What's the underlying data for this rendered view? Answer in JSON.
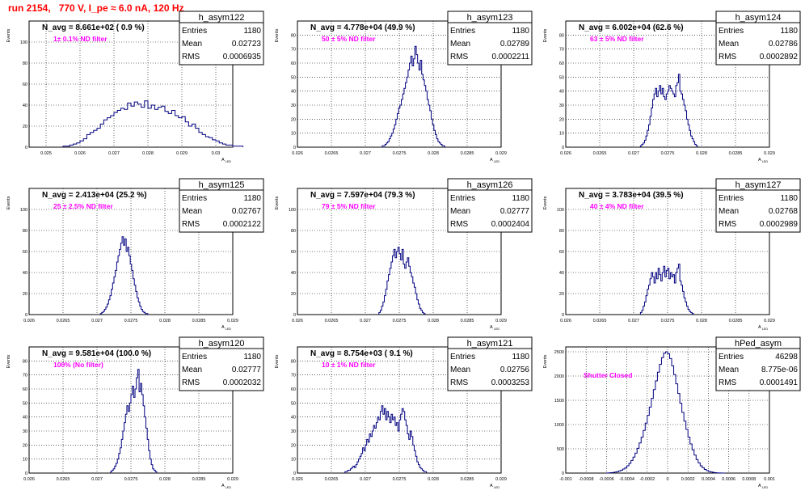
{
  "page": {
    "run_title": "run 2154,   770 V, I_pe ≈ 6.0 nA, 120 Hz"
  },
  "colors": {
    "hist_line": "#000080",
    "navg_text": "#000000",
    "filter_text": "#ff00ff",
    "title_text": "#ff0000",
    "grid": "#000000"
  },
  "chart_data": [
    {
      "type": "bar",
      "name": "h_asym122",
      "ylabel": "Events",
      "xlabel": "A_LED",
      "xlim": [
        0.0245,
        0.0305
      ],
      "ylim": [
        0,
        120
      ],
      "xticks": [
        0.025,
        0.026,
        0.027,
        0.028,
        0.029,
        0.03
      ],
      "xticklabels": [
        "0.025",
        "0.026",
        "0.027",
        "0.028",
        "0.029",
        "0.03"
      ],
      "yticks": [
        0,
        20,
        40,
        60,
        80,
        100
      ],
      "navg": "N_avg = 8.661e+02 ( 0.9 %)",
      "filter": "1± 0.1% ND filter",
      "stats": {
        "title": "h_asym122",
        "rows": [
          [
            "Entries",
            "1180"
          ],
          [
            "Mean",
            "0.02723"
          ],
          [
            "RMS",
            "0.0006935"
          ]
        ]
      },
      "bins": {
        "start": 0.0255,
        "width": 0.0001,
        "values": [
          1,
          1,
          2,
          3,
          4,
          6,
          8,
          12,
          14,
          16,
          18,
          22,
          26,
          28,
          30,
          33,
          35,
          37,
          36,
          42,
          39,
          43,
          41,
          38,
          44,
          37,
          40,
          36,
          38,
          39,
          34,
          32,
          35,
          30,
          28,
          29,
          24,
          20,
          22,
          18,
          14,
          12,
          10,
          9,
          7,
          6,
          4,
          3,
          2,
          2,
          1,
          1,
          1
        ]
      }
    },
    {
      "type": "bar",
      "name": "h_asym123",
      "ylabel": "Events",
      "xlabel": "A_LED",
      "xlim": [
        0.026,
        0.029
      ],
      "ylim": [
        0,
        90
      ],
      "xticks": [
        0.026,
        0.0265,
        0.027,
        0.0275,
        0.028,
        0.0285,
        0.029
      ],
      "xticklabels": [
        "0.026",
        "0.0265",
        "0.027",
        "0.0275",
        "0.028",
        "0.0285",
        "0.029"
      ],
      "yticks": [
        0,
        10,
        20,
        30,
        40,
        50,
        60,
        70,
        80
      ],
      "navg": "N_avg = 4.778e+04 (49.9 %)",
      "filter": "50 ± 5% ND filter",
      "stats": {
        "title": "h_asym123",
        "rows": [
          [
            "Entries",
            "1180"
          ],
          [
            "Mean",
            "0.02789"
          ],
          [
            "RMS",
            "0.0002211"
          ]
        ]
      },
      "bins": {
        "start": 0.02725,
        "width": 2e-05,
        "values": [
          1,
          1,
          2,
          3,
          4,
          6,
          8,
          10,
          13,
          16,
          20,
          24,
          28,
          30,
          34,
          38,
          42,
          46,
          50,
          55,
          60,
          65,
          58,
          63,
          72,
          66,
          60,
          55,
          62,
          52,
          48,
          44,
          40,
          34,
          30,
          26,
          20,
          16,
          12,
          9,
          6,
          4,
          3,
          2,
          1,
          1
        ]
      }
    },
    {
      "type": "bar",
      "name": "h_asym124",
      "ylabel": "Events",
      "xlabel": "A_LED",
      "xlim": [
        0.026,
        0.029
      ],
      "ylim": [
        0,
        90
      ],
      "xticks": [
        0.026,
        0.0265,
        0.027,
        0.0275,
        0.028,
        0.0285,
        0.029
      ],
      "xticklabels": [
        "0.026",
        "0.0265",
        "0.027",
        "0.0275",
        "0.028",
        "0.0285",
        "0.029"
      ],
      "yticks": [
        0,
        10,
        20,
        30,
        40,
        50,
        60,
        70,
        80
      ],
      "navg": "N_avg = 6.002e+04 (62.6 %)",
      "filter": "63 ± 5% ND filter",
      "stats": {
        "title": "h_asym124",
        "rows": [
          [
            "Entries",
            "1180"
          ],
          [
            "Mean",
            "0.02786"
          ],
          [
            "RMS",
            "0.0002892"
          ]
        ]
      },
      "bins": {
        "start": 0.0271,
        "width": 2e-05,
        "values": [
          1,
          2,
          3,
          5,
          8,
          12,
          16,
          22,
          28,
          34,
          38,
          42,
          36,
          40,
          44,
          38,
          42,
          36,
          34,
          38,
          40,
          44,
          42,
          40,
          38,
          36,
          44,
          46,
          52,
          40,
          38,
          34,
          30,
          26,
          20,
          16,
          12,
          8,
          6,
          4,
          2,
          1
        ]
      }
    },
    {
      "type": "bar",
      "name": "h_asym125",
      "ylabel": "Events",
      "xlabel": "A_LED",
      "xlim": [
        0.026,
        0.029
      ],
      "ylim": [
        0,
        120
      ],
      "xticks": [
        0.026,
        0.0265,
        0.027,
        0.0275,
        0.028,
        0.0285,
        0.029
      ],
      "xticklabels": [
        "0.026",
        "0.0265",
        "0.027",
        "0.0275",
        "0.028",
        "0.0285",
        "0.029"
      ],
      "yticks": [
        0,
        20,
        40,
        60,
        80,
        100
      ],
      "navg": "N_avg = 2.413e+04 (25.2 %)",
      "filter": "25 ± 2.5% ND filter",
      "stats": {
        "title": "h_asym125",
        "rows": [
          [
            "Entries",
            "1180"
          ],
          [
            "Mean",
            "0.02767"
          ],
          [
            "RMS",
            "0.0002122"
          ]
        ]
      },
      "bins": {
        "start": 0.02705,
        "width": 2e-05,
        "values": [
          1,
          2,
          3,
          5,
          7,
          10,
          14,
          18,
          24,
          30,
          36,
          42,
          50,
          56,
          62,
          68,
          74,
          66,
          72,
          60,
          64,
          56,
          48,
          42,
          34,
          28,
          22,
          16,
          12,
          8,
          5,
          3,
          2,
          1,
          1
        ]
      }
    },
    {
      "type": "bar",
      "name": "h_asym126",
      "ylabel": "Events",
      "xlabel": "A_LED",
      "xlim": [
        0.026,
        0.029
      ],
      "ylim": [
        0,
        120
      ],
      "xticks": [
        0.026,
        0.0265,
        0.027,
        0.0275,
        0.028,
        0.0285,
        0.029
      ],
      "xticklabels": [
        "0.026",
        "0.0265",
        "0.027",
        "0.0275",
        "0.028",
        "0.0285",
        "0.029"
      ],
      "yticks": [
        0,
        20,
        40,
        60,
        80,
        100
      ],
      "navg": "N_avg = 7.597e+04 (79.3 %)",
      "filter": "79 ± 5% ND filter",
      "stats": {
        "title": "h_asym126",
        "rows": [
          [
            "Entries",
            "1180"
          ],
          [
            "Mean",
            "0.02777"
          ],
          [
            "RMS",
            "0.0002404"
          ]
        ]
      },
      "bins": {
        "start": 0.0272,
        "width": 2e-05,
        "values": [
          2,
          4,
          8,
          12,
          18,
          24,
          32,
          38,
          44,
          50,
          56,
          62,
          54,
          60,
          64,
          58,
          52,
          62,
          48,
          44,
          50,
          54,
          46,
          40,
          36,
          30,
          26,
          20,
          14,
          10,
          6,
          4,
          2,
          1
        ]
      }
    },
    {
      "type": "bar",
      "name": "h_asym127",
      "ylabel": "Events",
      "xlabel": "A_LED",
      "xlim": [
        0.026,
        0.029
      ],
      "ylim": [
        0,
        120
      ],
      "xticks": [
        0.026,
        0.0265,
        0.027,
        0.0275,
        0.028,
        0.0285,
        0.029
      ],
      "xticklabels": [
        "0.026",
        "0.0265",
        "0.027",
        "0.0275",
        "0.028",
        "0.0285",
        "0.029"
      ],
      "yticks": [
        0,
        20,
        40,
        60,
        80,
        100
      ],
      "navg": "N_avg = 3.783e+04 (39.5 %)",
      "filter": "40 ± 4% ND filter",
      "stats": {
        "title": "h_asym127",
        "rows": [
          [
            "Entries",
            "1180"
          ],
          [
            "Mean",
            "0.02768"
          ],
          [
            "RMS",
            "0.0002989"
          ]
        ]
      },
      "bins": {
        "start": 0.0271,
        "width": 2e-05,
        "values": [
          2,
          4,
          8,
          12,
          18,
          24,
          28,
          34,
          40,
          36,
          30,
          40,
          34,
          44,
          38,
          32,
          40,
          46,
          36,
          42,
          44,
          34,
          40,
          36,
          38,
          30,
          40,
          44,
          48,
          32,
          28,
          22,
          16,
          12,
          8,
          5,
          3,
          2,
          1
        ]
      }
    },
    {
      "type": "bar",
      "name": "h_asym120",
      "ylabel": "Events",
      "xlabel": "A_LED",
      "xlim": [
        0.026,
        0.029
      ],
      "ylim": [
        0,
        90
      ],
      "xticks": [
        0.026,
        0.0265,
        0.027,
        0.0275,
        0.028,
        0.0285,
        0.029
      ],
      "xticklabels": [
        "0.026",
        "0.0265",
        "0.027",
        "0.0275",
        "0.028",
        "0.0285",
        "0.029"
      ],
      "yticks": [
        0,
        10,
        20,
        30,
        40,
        50,
        60,
        70,
        80
      ],
      "navg": "N_avg = 9.581e+04 (100.0 %)",
      "filter": "100% (No filter)",
      "stats": {
        "title": "h_asym120",
        "rows": [
          [
            "Entries",
            "1180"
          ],
          [
            "Mean",
            "0.02777"
          ],
          [
            "RMS",
            "0.0002032"
          ]
        ]
      },
      "bins": {
        "start": 0.0272,
        "width": 2e-05,
        "values": [
          1,
          2,
          3,
          5,
          7,
          10,
          14,
          18,
          24,
          30,
          36,
          42,
          48,
          44,
          50,
          56,
          62,
          54,
          60,
          68,
          74,
          58,
          64,
          56,
          48,
          40,
          32,
          24,
          16,
          10,
          6,
          3,
          2,
          1
        ]
      }
    },
    {
      "type": "bar",
      "name": "h_asym121",
      "ylabel": "Events",
      "xlabel": "A_LED",
      "xlim": [
        0.026,
        0.029
      ],
      "ylim": [
        0,
        90
      ],
      "xticks": [
        0.026,
        0.0265,
        0.027,
        0.0275,
        0.028,
        0.0285,
        0.029
      ],
      "xticklabels": [
        "0.026",
        "0.0265",
        "0.027",
        "0.0275",
        "0.028",
        "0.0285",
        "0.029"
      ],
      "yticks": [
        0,
        10,
        20,
        30,
        40,
        50,
        60,
        70,
        80
      ],
      "navg": "N_avg = 8.754e+03 ( 9.1 %)",
      "filter": "10 ± 1% ND filter",
      "stats": {
        "title": "h_asym121",
        "rows": [
          [
            "Entries",
            "1180"
          ],
          [
            "Mean",
            "0.02756"
          ],
          [
            "RMS",
            "0.0003253"
          ]
        ]
      },
      "bins": {
        "start": 0.0267,
        "width": 2e-05,
        "values": [
          1,
          1,
          2,
          2,
          3,
          4,
          5,
          4,
          6,
          8,
          10,
          12,
          14,
          18,
          16,
          20,
          24,
          22,
          28,
          26,
          30,
          34,
          32,
          36,
          40,
          38,
          44,
          48,
          42,
          46,
          38,
          44,
          40,
          36,
          42,
          38,
          40,
          34,
          36,
          30,
          38,
          42,
          46,
          44,
          38,
          34,
          28,
          24,
          30,
          26,
          20,
          16,
          12,
          8,
          6,
          4,
          3,
          2,
          1,
          1
        ]
      }
    },
    {
      "type": "bar",
      "name": "hPed_asym",
      "ylabel": "Events",
      "xlabel": "A_LED",
      "xlim": [
        -0.001,
        0.001
      ],
      "ylim": [
        0,
        2600
      ],
      "xticks": [
        -0.001,
        -0.0008,
        -0.0006,
        -0.0004,
        -0.0002,
        0,
        0.0002,
        0.0004,
        0.0006,
        0.0008,
        0.001
      ],
      "xticklabels": [
        "-0.001",
        "-0.0008",
        "-0.0006",
        "-0.0004",
        "-0.0002",
        "0",
        "0.0002",
        "0.0004",
        "0.0006",
        "0.0008",
        "0.001"
      ],
      "yticks": [
        0,
        500,
        1000,
        1500,
        2000,
        2500
      ],
      "navg": "",
      "filter": "Shutter Closed",
      "stats": {
        "title": "hPed_asym",
        "rows": [
          [
            "Entries",
            "46298"
          ],
          [
            "Mean",
            "8.775e-06"
          ],
          [
            "RMS",
            "0.0001491"
          ]
        ]
      },
      "bins": {
        "start": -0.0006,
        "width": 2e-05,
        "values": [
          2,
          4,
          8,
          12,
          20,
          30,
          44,
          60,
          84,
          110,
          150,
          200,
          260,
          330,
          410,
          510,
          620,
          740,
          880,
          1030,
          1190,
          1360,
          1540,
          1720,
          1900,
          2080,
          2240,
          2380,
          2470,
          2500,
          2460,
          2360,
          2210,
          2030,
          1840,
          1640,
          1440,
          1250,
          1070,
          900,
          740,
          600,
          480,
          370,
          280,
          210,
          150,
          110,
          76,
          52,
          34,
          22,
          14,
          8,
          5,
          3,
          2,
          1
        ]
      }
    }
  ]
}
